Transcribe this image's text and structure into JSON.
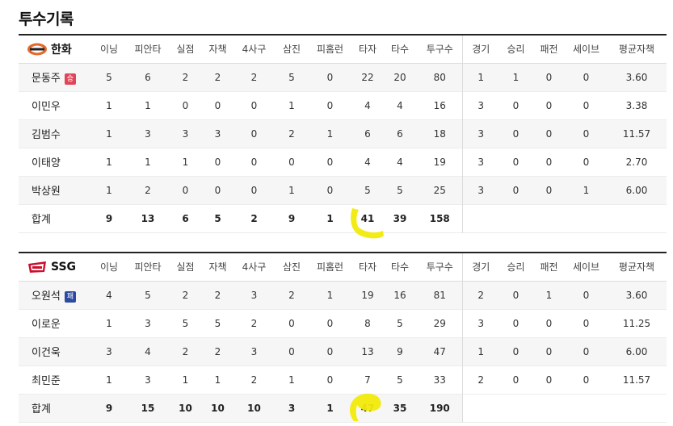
{
  "page": {
    "title": "투수기록"
  },
  "columns": {
    "innings": "이닝",
    "hits": "피안타",
    "runs": "실점",
    "earned_runs": "자책",
    "walks": "4사구",
    "strikeouts": "삼진",
    "home_runs": "피홈런",
    "batters": "타자",
    "at_bats": "타수",
    "pitches": "투구수",
    "games": "경기",
    "wins": "승리",
    "losses": "패전",
    "saves": "세이브",
    "era": "평균자책"
  },
  "teams": [
    {
      "name": "한화",
      "accent": "#e4672b",
      "players": [
        {
          "name": "문동주",
          "badge": "승",
          "badge_color": "#e2455a",
          "innings": "5",
          "hits": "6",
          "runs": "2",
          "earned_runs": "2",
          "walks": "2",
          "strikeouts": "5",
          "home_runs": "0",
          "batters": "22",
          "at_bats": "20",
          "pitches": "80",
          "games": "1",
          "wins": "1",
          "losses": "0",
          "saves": "0",
          "era": "3.60"
        },
        {
          "name": "이민우",
          "badge": "",
          "innings": "1",
          "hits": "1",
          "runs": "0",
          "earned_runs": "0",
          "walks": "0",
          "strikeouts": "1",
          "home_runs": "0",
          "batters": "4",
          "at_bats": "4",
          "pitches": "16",
          "games": "3",
          "wins": "0",
          "losses": "0",
          "saves": "0",
          "era": "3.38"
        },
        {
          "name": "김범수",
          "badge": "",
          "innings": "1",
          "hits": "3",
          "runs": "3",
          "earned_runs": "3",
          "walks": "0",
          "strikeouts": "2",
          "home_runs": "1",
          "batters": "6",
          "at_bats": "6",
          "pitches": "18",
          "games": "3",
          "wins": "0",
          "losses": "0",
          "saves": "0",
          "era": "11.57"
        },
        {
          "name": "이태양",
          "badge": "",
          "innings": "1",
          "hits": "1",
          "runs": "1",
          "earned_runs": "0",
          "walks": "0",
          "strikeouts": "0",
          "home_runs": "0",
          "batters": "4",
          "at_bats": "4",
          "pitches": "19",
          "games": "3",
          "wins": "0",
          "losses": "0",
          "saves": "0",
          "era": "2.70"
        },
        {
          "name": "박상원",
          "badge": "",
          "innings": "1",
          "hits": "2",
          "runs": "0",
          "earned_runs": "0",
          "walks": "0",
          "strikeouts": "1",
          "home_runs": "0",
          "batters": "5",
          "at_bats": "5",
          "pitches": "25",
          "games": "3",
          "wins": "0",
          "losses": "0",
          "saves": "1",
          "era": "6.00"
        }
      ],
      "total": {
        "label": "합계",
        "innings": "9",
        "hits": "13",
        "runs": "6",
        "earned_runs": "5",
        "walks": "2",
        "strikeouts": "9",
        "home_runs": "1",
        "batters": "41",
        "at_bats": "39",
        "pitches": "158"
      }
    },
    {
      "name": "SSG",
      "accent": "#ce0e2d",
      "players": [
        {
          "name": "오원석",
          "badge": "패",
          "badge_color": "#2b4aa0",
          "innings": "4",
          "hits": "5",
          "runs": "2",
          "earned_runs": "2",
          "walks": "3",
          "strikeouts": "2",
          "home_runs": "1",
          "batters": "19",
          "at_bats": "16",
          "pitches": "81",
          "games": "2",
          "wins": "0",
          "losses": "1",
          "saves": "0",
          "era": "3.60"
        },
        {
          "name": "이로운",
          "badge": "",
          "innings": "1",
          "hits": "3",
          "runs": "5",
          "earned_runs": "5",
          "walks": "2",
          "strikeouts": "0",
          "home_runs": "0",
          "batters": "8",
          "at_bats": "5",
          "pitches": "29",
          "games": "3",
          "wins": "0",
          "losses": "0",
          "saves": "0",
          "era": "11.25"
        },
        {
          "name": "이건욱",
          "badge": "",
          "innings": "3",
          "hits": "4",
          "runs": "2",
          "earned_runs": "2",
          "walks": "3",
          "strikeouts": "0",
          "home_runs": "0",
          "batters": "13",
          "at_bats": "9",
          "pitches": "47",
          "games": "1",
          "wins": "0",
          "losses": "0",
          "saves": "0",
          "era": "6.00"
        },
        {
          "name": "최민준",
          "badge": "",
          "innings": "1",
          "hits": "3",
          "runs": "1",
          "earned_runs": "1",
          "walks": "2",
          "strikeouts": "1",
          "home_runs": "0",
          "batters": "7",
          "at_bats": "5",
          "pitches": "33",
          "games": "2",
          "wins": "0",
          "losses": "0",
          "saves": "0",
          "era": "11.57"
        }
      ],
      "total": {
        "label": "합계",
        "innings": "9",
        "hits": "15",
        "runs": "10",
        "earned_runs": "10",
        "walks": "10",
        "strikeouts": "3",
        "home_runs": "1",
        "batters": "47",
        "at_bats": "35",
        "pitches": "190"
      }
    }
  ],
  "annotations": {
    "highlight_color": "#f2ea0a"
  }
}
